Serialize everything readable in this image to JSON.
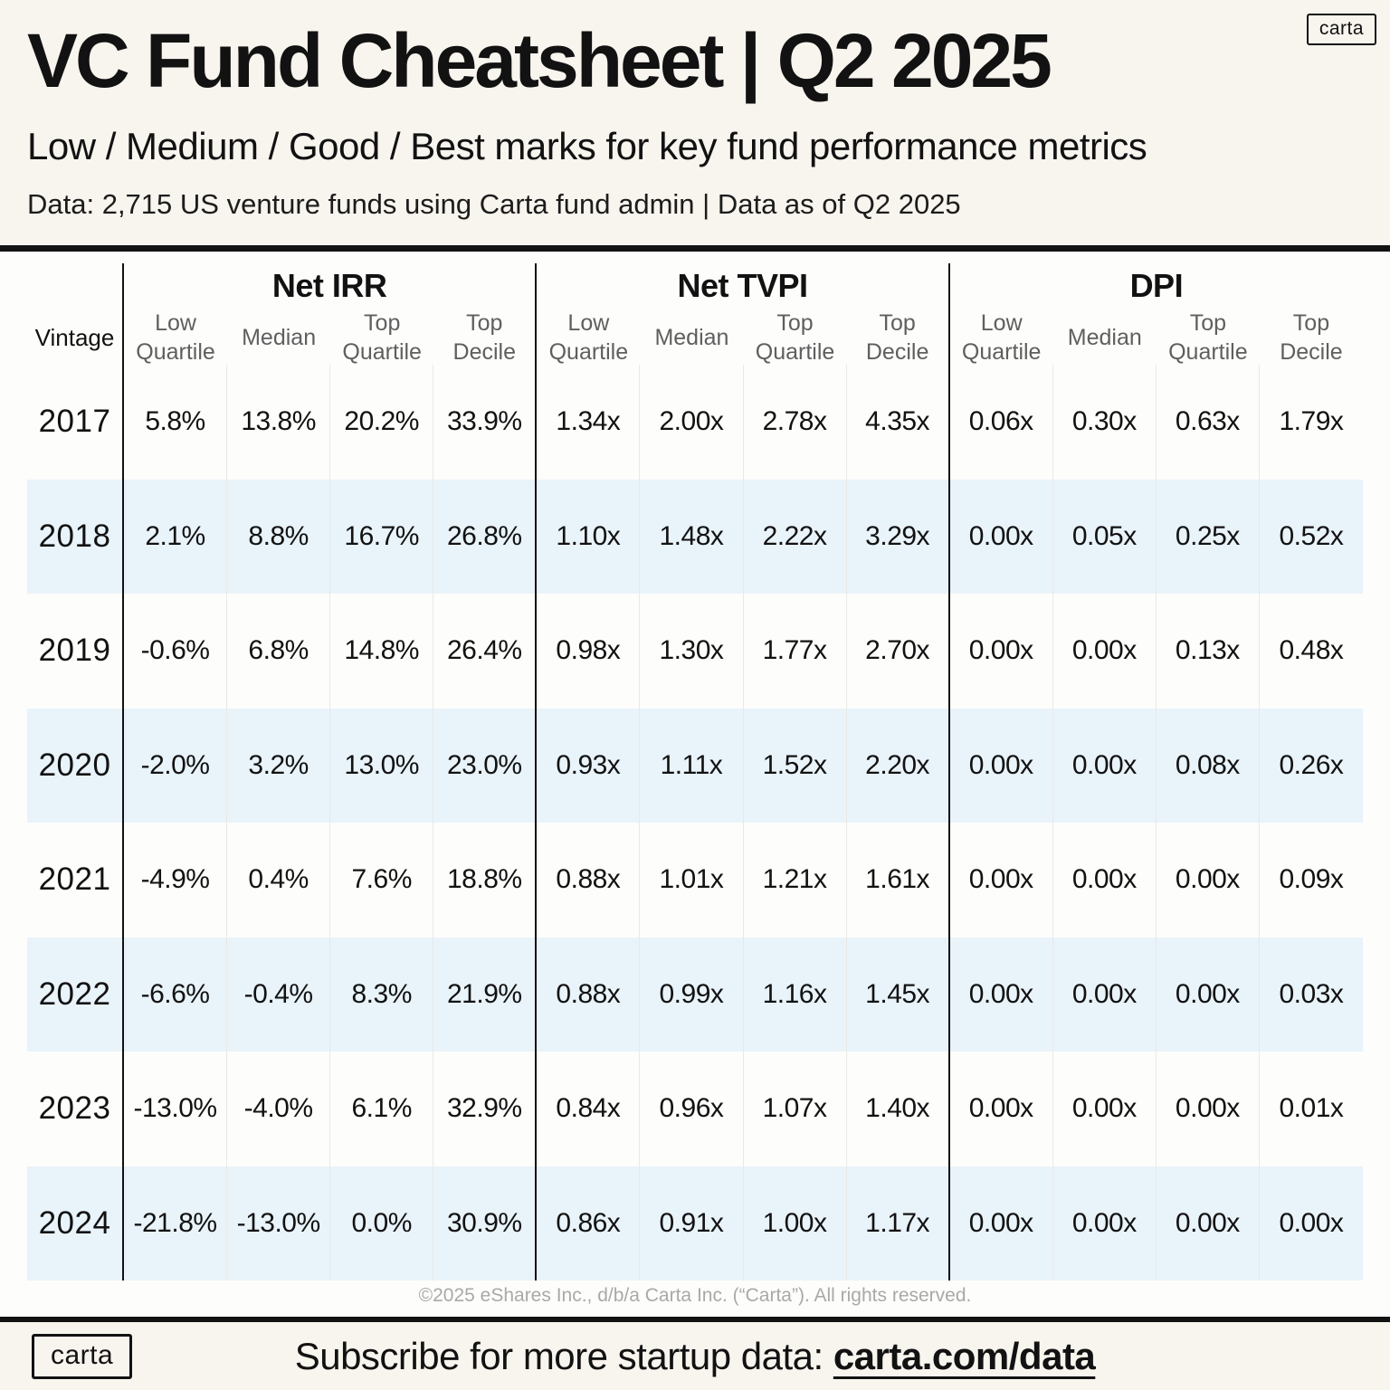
{
  "brand": {
    "logo_text": "carta"
  },
  "header": {
    "title": "VC Fund Cheatsheet | Q2 2025",
    "subtitle": "Low / Medium / Good / Best marks for key fund performance metrics",
    "data_note": "Data: 2,715 US venture funds using Carta fund admin | Data as of Q2 2025"
  },
  "table": {
    "vintage_label": "Vintage",
    "groups": [
      {
        "label": "Net IRR",
        "columns": [
          "Low Quartile",
          "Median",
          "Top Quartile",
          "Top Decile"
        ]
      },
      {
        "label": "Net TVPI",
        "columns": [
          "Low Quartile",
          "Median",
          "Top Quartile",
          "Top Decile"
        ]
      },
      {
        "label": "DPI",
        "columns": [
          "Low Quartile",
          "Median",
          "Top Quartile",
          "Top Decile"
        ]
      }
    ]
  },
  "chart_data": {
    "type": "table",
    "title": "VC Fund Cheatsheet | Q2 2025",
    "subtitle": "Low / Medium / Good / Best marks for key fund performance metrics",
    "source_note": "Data: 2,715 US venture funds using Carta fund admin | Data as of Q2 2025",
    "column_groups": [
      "Net IRR",
      "Net TVPI",
      "DPI"
    ],
    "sub_columns": [
      "Low Quartile",
      "Median",
      "Top Quartile",
      "Top Decile"
    ],
    "rows": [
      {
        "vintage": "2017",
        "net_irr": [
          "5.8%",
          "13.8%",
          "20.2%",
          "33.9%"
        ],
        "net_tvpi": [
          "1.34x",
          "2.00x",
          "2.78x",
          "4.35x"
        ],
        "dpi": [
          "0.06x",
          "0.30x",
          "0.63x",
          "1.79x"
        ]
      },
      {
        "vintage": "2018",
        "net_irr": [
          "2.1%",
          "8.8%",
          "16.7%",
          "26.8%"
        ],
        "net_tvpi": [
          "1.10x",
          "1.48x",
          "2.22x",
          "3.29x"
        ],
        "dpi": [
          "0.00x",
          "0.05x",
          "0.25x",
          "0.52x"
        ]
      },
      {
        "vintage": "2019",
        "net_irr": [
          "-0.6%",
          "6.8%",
          "14.8%",
          "26.4%"
        ],
        "net_tvpi": [
          "0.98x",
          "1.30x",
          "1.77x",
          "2.70x"
        ],
        "dpi": [
          "0.00x",
          "0.00x",
          "0.13x",
          "0.48x"
        ]
      },
      {
        "vintage": "2020",
        "net_irr": [
          "-2.0%",
          "3.2%",
          "13.0%",
          "23.0%"
        ],
        "net_tvpi": [
          "0.93x",
          "1.11x",
          "1.52x",
          "2.20x"
        ],
        "dpi": [
          "0.00x",
          "0.00x",
          "0.08x",
          "0.26x"
        ]
      },
      {
        "vintage": "2021",
        "net_irr": [
          "-4.9%",
          "0.4%",
          "7.6%",
          "18.8%"
        ],
        "net_tvpi": [
          "0.88x",
          "1.01x",
          "1.21x",
          "1.61x"
        ],
        "dpi": [
          "0.00x",
          "0.00x",
          "0.00x",
          "0.09x"
        ]
      },
      {
        "vintage": "2022",
        "net_irr": [
          "-6.6%",
          "-0.4%",
          "8.3%",
          "21.9%"
        ],
        "net_tvpi": [
          "0.88x",
          "0.99x",
          "1.16x",
          "1.45x"
        ],
        "dpi": [
          "0.00x",
          "0.00x",
          "0.00x",
          "0.03x"
        ]
      },
      {
        "vintage": "2023",
        "net_irr": [
          "-13.0%",
          "-4.0%",
          "6.1%",
          "32.9%"
        ],
        "net_tvpi": [
          "0.84x",
          "0.96x",
          "1.07x",
          "1.40x"
        ],
        "dpi": [
          "0.00x",
          "0.00x",
          "0.00x",
          "0.01x"
        ]
      },
      {
        "vintage": "2024",
        "net_irr": [
          "-21.8%",
          "-13.0%",
          "0.0%",
          "30.9%"
        ],
        "net_tvpi": [
          "0.86x",
          "0.91x",
          "1.00x",
          "1.17x"
        ],
        "dpi": [
          "0.00x",
          "0.00x",
          "0.00x",
          "0.00x"
        ]
      }
    ]
  },
  "footer": {
    "copyright": "©2025 eShares Inc., d/b/a Carta Inc. (“Carta”). All rights reserved.",
    "subscribe_text": "Subscribe for more startup data: ",
    "subscribe_link": "carta.com/data"
  },
  "colors": {
    "background_cream": "#f8f4ee",
    "table_background": "#fdfdfb",
    "row_stripe_blue": "#e9f3fa",
    "ink_black": "#121212",
    "header_gray": "#5f5f5f",
    "copyright_gray": "#a9a9a9"
  }
}
